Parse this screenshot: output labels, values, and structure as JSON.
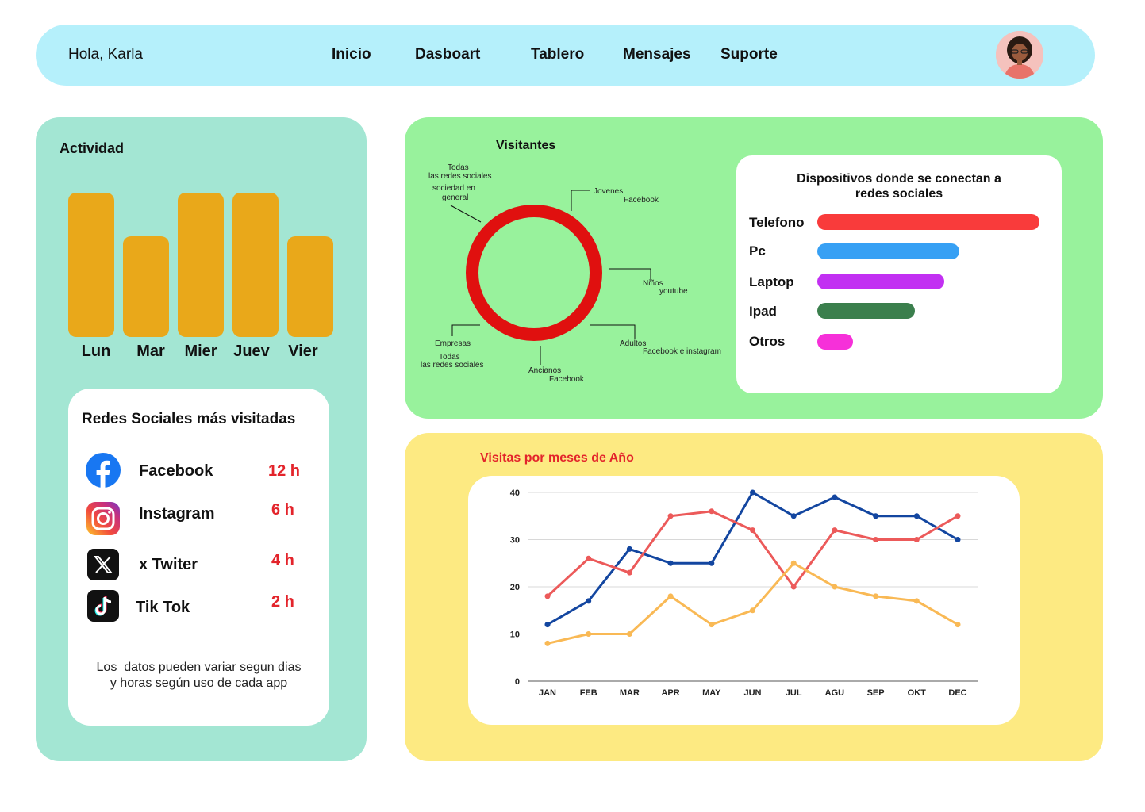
{
  "header": {
    "greeting": "Hola, Karla",
    "nav": [
      "Inicio",
      "Dasboart",
      "Tablero",
      "Mensajes",
      "Suporte"
    ],
    "avatar_icon": "user-avatar"
  },
  "activity": {
    "title": "Actividad",
    "chart_data": {
      "type": "bar",
      "categories": [
        "Lun",
        "Mar",
        "Mier",
        "Juev",
        "Vier"
      ],
      "values": [
        100,
        70,
        100,
        100,
        70
      ],
      "ylim": [
        0,
        100
      ],
      "color": "#e9a81a"
    }
  },
  "social": {
    "title": "Redes Sociales más visitadas",
    "items": [
      {
        "name": "Facebook",
        "hours": "12 h",
        "icon": "facebook-icon"
      },
      {
        "name": "Instagram",
        "hours": "6 h",
        "icon": "instagram-icon"
      },
      {
        "name": "x Twiter",
        "hours": "4 h",
        "icon": "x-twitter-icon"
      },
      {
        "name": "Tik Tok",
        "hours": "2 h",
        "icon": "tiktok-icon"
      }
    ],
    "note_line1": "Los  datos pueden variar segun dias",
    "note_line2": "y horas según uso de cada app"
  },
  "visitors": {
    "title": "Visitantes",
    "ring_color": "#e0100f",
    "labels": {
      "todas_a": "Todas",
      "todas_b": "las redes sociales",
      "sociedad_a": "sociedad en",
      "sociedad_b": "general",
      "jovenes": "Jovenes",
      "jovenes_sub": "Facebook",
      "ninos": "Niños",
      "ninos_sub": "youtube",
      "adultos": "Adultos",
      "adultos_sub": "Facebook e instagram",
      "ancianos": "Ancianos",
      "ancianos_sub": "Facebook",
      "empresas": "Empresas",
      "empresas_sub_a": "Todas",
      "empresas_sub_b": "las redes sociales"
    }
  },
  "devices": {
    "title_line1": "Dispositivos donde se conectan a",
    "title_line2": "redes sociales",
    "chart_data": {
      "type": "bar",
      "orientation": "horizontal",
      "categories": [
        "Telefono",
        "Pc",
        "Laptop",
        "Ipad",
        "Otros"
      ],
      "values": [
        100,
        64,
        57,
        44,
        16
      ],
      "colors": [
        "#f93b3b",
        "#37a0f4",
        "#c230f2",
        "#3b7f4d",
        "#f630d9"
      ]
    }
  },
  "visits": {
    "title": "Visitas por meses de Año",
    "chart_data": {
      "type": "line",
      "x": [
        "JAN",
        "FEB",
        "MAR",
        "APR",
        "MAY",
        "JUN",
        "JUL",
        "AGU",
        "SEP",
        "OKT",
        "DEC"
      ],
      "ylim": [
        0,
        40
      ],
      "yticks": [
        "0",
        "10",
        "20",
        "30",
        "40"
      ],
      "grid": true,
      "series": [
        {
          "color": "#1346a0",
          "values": [
            12,
            17,
            28,
            25,
            25,
            40,
            35,
            39,
            35,
            35,
            30
          ]
        },
        {
          "color": "#ec5a5a",
          "values": [
            18,
            26,
            23,
            35,
            36,
            32,
            20,
            32,
            30,
            30,
            35
          ]
        },
        {
          "color": "#f9b955",
          "values": [
            8,
            10,
            10,
            18,
            12,
            15,
            25,
            20,
            18,
            17,
            12
          ]
        }
      ]
    }
  }
}
